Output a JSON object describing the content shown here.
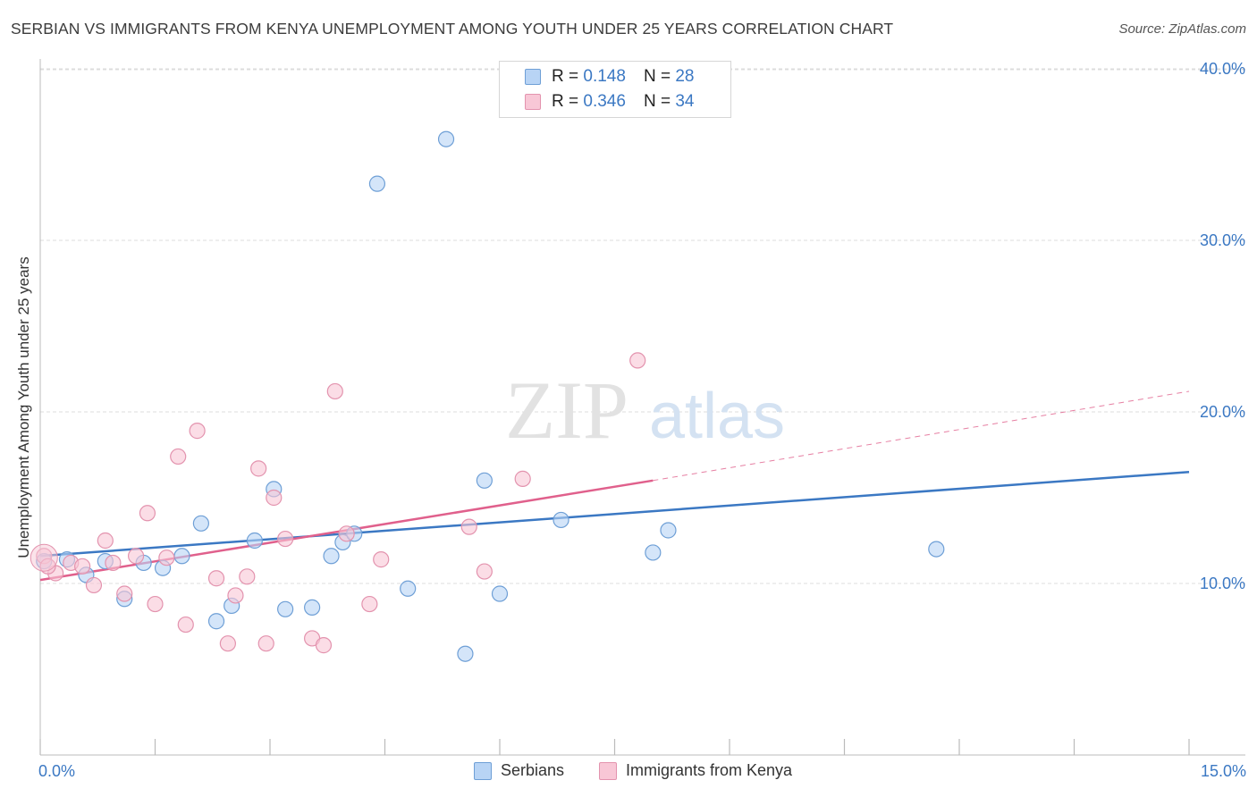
{
  "header": {
    "title": "SERBIAN VS IMMIGRANTS FROM KENYA UNEMPLOYMENT AMONG YOUTH UNDER 25 YEARS CORRELATION CHART",
    "source": "Source: ZipAtlas.com"
  },
  "watermark": {
    "zip": "ZIP",
    "atlas": "atlas"
  },
  "legend": {
    "rows": [
      {
        "r_label": "R =",
        "r_value": "0.148",
        "n_label": "N =",
        "n_value": "28"
      },
      {
        "r_label": "R =",
        "r_value": "0.346",
        "n_label": "N =",
        "n_value": "34"
      }
    ]
  },
  "colors": {
    "serbians_fill": "#b8d4f5",
    "serbians_stroke": "#6e9fd6",
    "serbians_line": "#3b78c3",
    "kenya_fill": "#f8c7d6",
    "kenya_stroke": "#e393ae",
    "kenya_line": "#e0608c",
    "axis_text": "#3b78c3",
    "grid": "#dcdcdc"
  },
  "chart_data": {
    "type": "scatter",
    "title": "SERBIAN VS IMMIGRANTS FROM KENYA UNEMPLOYMENT AMONG YOUTH UNDER 25 YEARS CORRELATION CHART",
    "xlabel": "",
    "ylabel": "Unemployment Among Youth under 25 years",
    "xlim": [
      0,
      15
    ],
    "ylim": [
      0,
      40
    ],
    "x_tick_labels": [
      "0.0%",
      "15.0%"
    ],
    "y_ticks": [
      10,
      20,
      30,
      40
    ],
    "y_tick_labels": [
      "10.0%",
      "20.0%",
      "30.0%",
      "40.0%"
    ],
    "grid": true,
    "legend_position": "top-center",
    "series": [
      {
        "name": "Serbians",
        "r": 0.148,
        "n": 28,
        "trend": {
          "x": [
            0,
            15
          ],
          "y": [
            11.6,
            16.5
          ],
          "dashed_after": null
        },
        "points": [
          [
            0.05,
            11.3
          ],
          [
            0.35,
            11.4
          ],
          [
            0.6,
            10.5
          ],
          [
            0.85,
            11.3
          ],
          [
            1.1,
            9.1
          ],
          [
            1.35,
            11.2
          ],
          [
            1.6,
            10.9
          ],
          [
            1.85,
            11.6
          ],
          [
            2.1,
            13.5
          ],
          [
            2.3,
            7.8
          ],
          [
            2.5,
            8.7
          ],
          [
            2.8,
            12.5
          ],
          [
            3.05,
            15.5
          ],
          [
            3.2,
            8.5
          ],
          [
            3.55,
            8.6
          ],
          [
            3.8,
            11.6
          ],
          [
            3.95,
            12.4
          ],
          [
            4.1,
            12.9
          ],
          [
            4.4,
            33.3
          ],
          [
            4.8,
            9.7
          ],
          [
            5.3,
            35.9
          ],
          [
            5.55,
            5.9
          ],
          [
            5.8,
            16.0
          ],
          [
            6.0,
            9.4
          ],
          [
            6.8,
            13.7
          ],
          [
            8.0,
            11.8
          ],
          [
            8.2,
            13.1
          ],
          [
            11.7,
            12.0
          ]
        ]
      },
      {
        "name": "Immigrants from Kenya",
        "r": 0.346,
        "n": 34,
        "trend": {
          "x": [
            0,
            8.0,
            15
          ],
          "y": [
            10.2,
            16.0,
            21.2
          ],
          "dashed_after": 8.0
        },
        "points": [
          [
            0.05,
            11.6
          ],
          [
            0.2,
            10.6
          ],
          [
            0.4,
            11.2
          ],
          [
            0.55,
            11.0
          ],
          [
            0.7,
            9.9
          ],
          [
            0.85,
            12.5
          ],
          [
            0.95,
            11.2
          ],
          [
            1.1,
            9.4
          ],
          [
            1.25,
            11.6
          ],
          [
            1.4,
            14.1
          ],
          [
            1.5,
            8.8
          ],
          [
            1.65,
            11.5
          ],
          [
            1.8,
            17.4
          ],
          [
            1.9,
            7.6
          ],
          [
            2.05,
            18.9
          ],
          [
            2.3,
            10.3
          ],
          [
            2.45,
            6.5
          ],
          [
            2.55,
            9.3
          ],
          [
            2.7,
            10.4
          ],
          [
            2.85,
            16.7
          ],
          [
            2.95,
            6.5
          ],
          [
            3.05,
            15.0
          ],
          [
            3.2,
            12.6
          ],
          [
            3.55,
            6.8
          ],
          [
            3.7,
            6.4
          ],
          [
            3.85,
            21.2
          ],
          [
            4.0,
            12.9
          ],
          [
            4.3,
            8.8
          ],
          [
            4.45,
            11.4
          ],
          [
            5.6,
            13.3
          ],
          [
            5.8,
            10.7
          ],
          [
            6.3,
            16.1
          ],
          [
            7.8,
            23.0
          ],
          [
            0.1,
            11.0
          ]
        ]
      }
    ]
  }
}
